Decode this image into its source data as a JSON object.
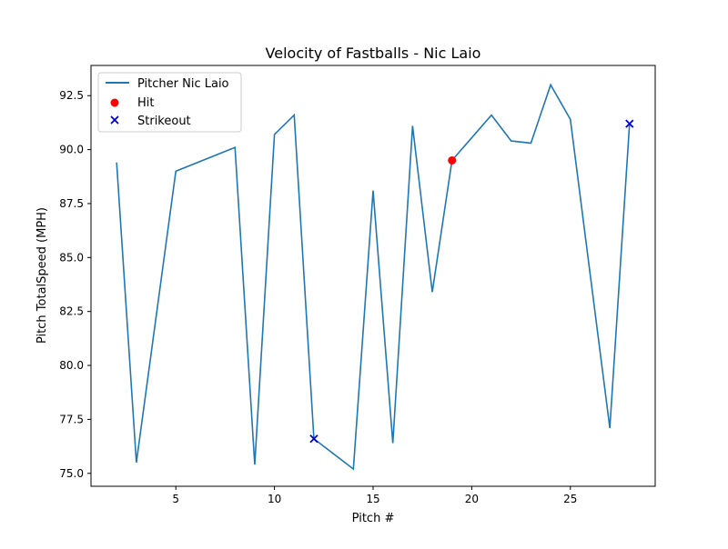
{
  "chart_data": {
    "type": "line",
    "title": "Velocity of Fastballs - Nic Laio",
    "xlabel": "Pitch #",
    "ylabel": "Pitch TotalSpeed (MPH)",
    "xlim": [
      0.7,
      29.3
    ],
    "ylim": [
      74.4,
      93.9
    ],
    "xticks": [
      5,
      10,
      15,
      20,
      25
    ],
    "xtick_labels": [
      "5",
      "10",
      "15",
      "20",
      "25"
    ],
    "yticks": [
      75.0,
      77.5,
      80.0,
      82.5,
      85.0,
      87.5,
      90.0,
      92.5
    ],
    "ytick_labels": [
      "75.0",
      "77.5",
      "80.0",
      "82.5",
      "85.0",
      "87.5",
      "90.0",
      "92.5"
    ],
    "grid": false,
    "legend_position": "upper-left",
    "series": [
      {
        "name": "Pitcher Nic Laio",
        "kind": "line",
        "color": "#1f77b4",
        "x": [
          2,
          3,
          5,
          8,
          9,
          10,
          11,
          12,
          14,
          15,
          16,
          17,
          18,
          19,
          21,
          22,
          23,
          24,
          25,
          27,
          28
        ],
        "y": [
          89.4,
          75.5,
          89.0,
          90.1,
          75.4,
          90.7,
          91.6,
          76.6,
          75.2,
          88.1,
          76.4,
          91.1,
          83.4,
          89.5,
          91.6,
          90.4,
          90.3,
          93.0,
          91.4,
          77.1,
          91.2
        ]
      },
      {
        "name": "Hit",
        "kind": "scatter",
        "marker": "circle",
        "color": "#ff0000",
        "x": [
          19
        ],
        "y": [
          89.5
        ]
      },
      {
        "name": "Strikeout",
        "kind": "scatter",
        "marker": "x",
        "color": "#0000cc",
        "x": [
          12,
          28
        ],
        "y": [
          76.6,
          91.2
        ]
      }
    ]
  }
}
